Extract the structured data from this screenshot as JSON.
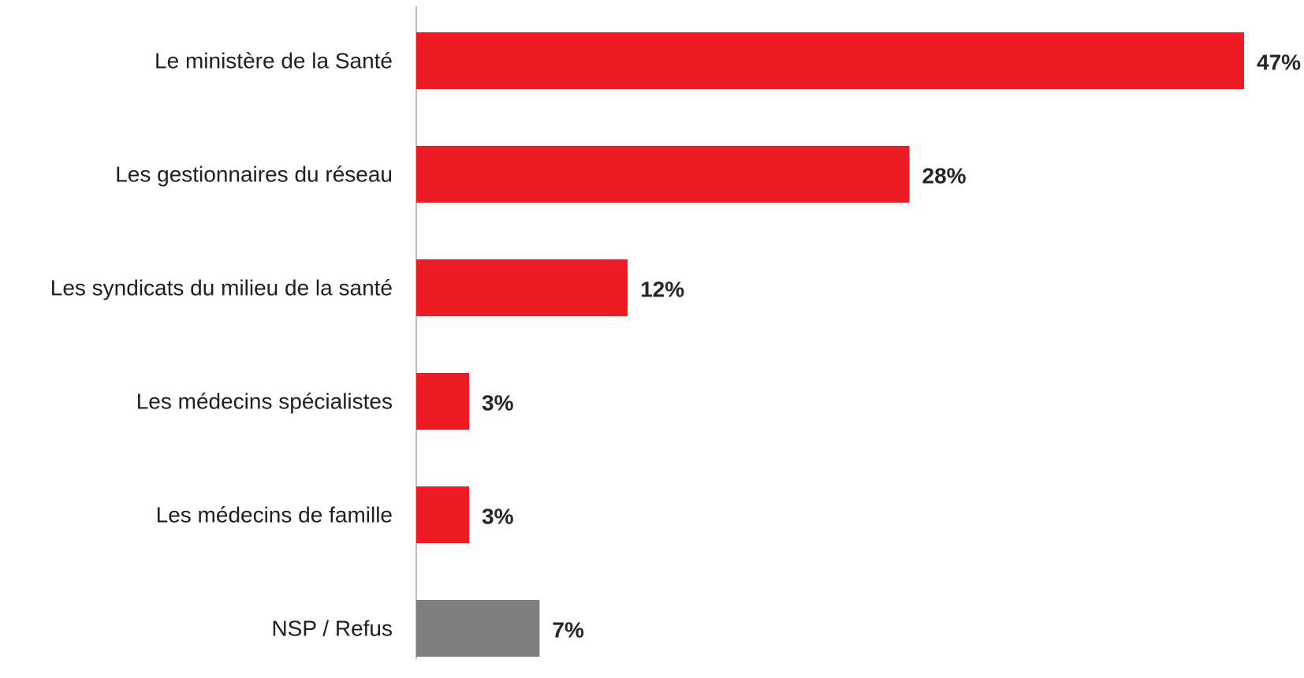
{
  "chart_data": {
    "type": "bar",
    "orientation": "horizontal",
    "categories": [
      "Le ministère de la Santé",
      "Les gestionnaires du réseau",
      "Les syndicats du milieu de la santé",
      "Les médecins spécialistes",
      "Les médecins de famille",
      "NSP / Refus"
    ],
    "values": [
      47,
      28,
      12,
      3,
      3,
      7
    ],
    "value_labels": [
      "47%",
      "28%",
      "12%",
      "3%",
      "3%",
      "7%"
    ],
    "unit": "%",
    "bar_colors": [
      "#ed1c24",
      "#ed1c24",
      "#ed1c24",
      "#ed1c24",
      "#ed1c24",
      "#7f7f7f"
    ],
    "axis_color": "#a6a6a6",
    "xlim": [
      0,
      47
    ],
    "grid": false,
    "legend": "none",
    "title": "",
    "xlabel": "",
    "ylabel": ""
  }
}
